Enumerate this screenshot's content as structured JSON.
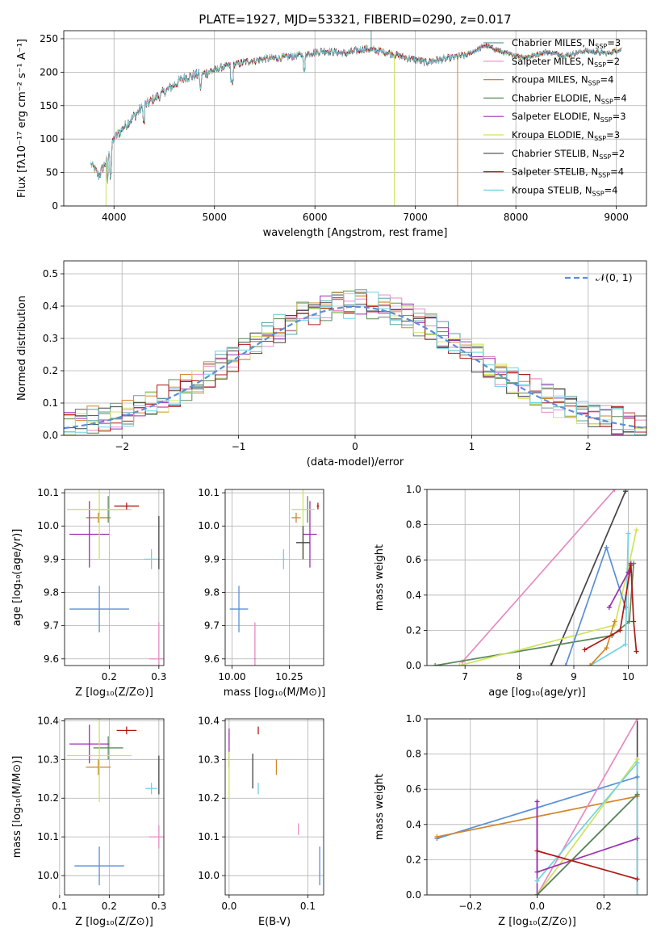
{
  "figure": {
    "title": "PLATE=1927, MJD=53321, FIBERID=0290, z=0.017"
  },
  "chart_data": [
    {
      "id": "spectrum",
      "type": "line",
      "title": "PLATE=1927, MJD=53321, FIBERID=0290, z=0.017",
      "xlabel": "wavelength [Angstrom, rest frame]",
      "ylabel": "Flux [fλ10⁻¹⁷ erg cm⁻² s⁻¹ A⁻¹]",
      "xlim": [
        3500,
        9300
      ],
      "ylim": [
        0,
        262
      ],
      "xticks": [
        4000,
        5000,
        6000,
        7000,
        8000,
        9000
      ],
      "yticks": [
        0,
        50,
        100,
        150,
        200,
        250
      ],
      "legend_position": "top-right",
      "continuum": {
        "x": [
          3770,
          3850,
          3950,
          4000,
          4100,
          4300,
          4500,
          4700,
          4900,
          5100,
          5300,
          5500,
          5700,
          5900,
          6100,
          6300,
          6500,
          6700,
          6900,
          7100,
          7300,
          7500,
          7700,
          7900,
          8100,
          8300,
          8500,
          8700,
          8900,
          9050
        ],
        "y": [
          63,
          45,
          75,
          100,
          118,
          150,
          170,
          192,
          198,
          208,
          215,
          220,
          222,
          227,
          232,
          228,
          235,
          230,
          222,
          215,
          220,
          225,
          240,
          228,
          222,
          230,
          225,
          232,
          228,
          234
        ]
      },
      "series": [
        {
          "name": "Chabrier MILES, N",
          "sub": "SSP",
          "suffix": "=3",
          "color": "#5f9ea0"
        },
        {
          "name": "Salpeter MILES, N",
          "sub": "SSP",
          "suffix": "=2",
          "color": "#e78ac3"
        },
        {
          "name": "Kroupa MILES, N",
          "sub": "SSP",
          "suffix": "=4",
          "color": "#d2862a"
        },
        {
          "name": "Chabrier ELODIE, N",
          "sub": "SSP",
          "suffix": "=4",
          "color": "#5b8a5b"
        },
        {
          "name": "Salpeter ELODIE, N",
          "sub": "SSP",
          "suffix": "=3",
          "color": "#9b30b0"
        },
        {
          "name": "Kroupa ELODIE, N",
          "sub": "SSP",
          "suffix": "=3",
          "color": "#cfe35b"
        },
        {
          "name": "Chabrier STELIB, N",
          "sub": "SSP",
          "suffix": "=2",
          "color": "#444444"
        },
        {
          "name": "Salpeter STELIB, N",
          "sub": "SSP",
          "suffix": "=4",
          "color": "#b01818"
        },
        {
          "name": "Kroupa STELIB, N",
          "sub": "SSP",
          "suffix": "=4",
          "color": "#6fd3e3"
        }
      ],
      "dropouts": [
        {
          "x": 3920,
          "color": "#cfe35b"
        },
        {
          "x": 6790,
          "color": "#cfe35b"
        },
        {
          "x": 7420,
          "color": "#d2862a"
        },
        {
          "x": 6560,
          "color": "#5f9ea0",
          "up": true
        }
      ]
    },
    {
      "id": "residuals",
      "type": "line",
      "xlabel": "(data-model)/error",
      "ylabel": "Normed distribution",
      "xlim": [
        -2.5,
        2.5
      ],
      "ylim": [
        0,
        0.54
      ],
      "xticks": [
        -2,
        -1,
        0,
        1,
        2
      ],
      "yticks": [
        0.0,
        0.1,
        0.2,
        0.3,
        0.4,
        0.5
      ],
      "legend_position": "top-right",
      "reference": {
        "name": "𝒩(0, 1)",
        "color": "#5a8fd6"
      },
      "bin_width": 0.1,
      "bin_start": -2.5
    },
    {
      "id": "age_vs_Z",
      "type": "scatter",
      "xlabel": "Z [log₁₀(Z/Z⊙)]",
      "ylabel": "age  [log₁₀(age/yr)]",
      "xlim": [
        0.11,
        0.31
      ],
      "ylim": [
        9.58,
        10.11
      ],
      "xticks": [
        0.2,
        0.3
      ],
      "yticks": [
        9.6,
        9.7,
        9.8,
        9.9,
        10.0,
        10.1
      ],
      "points": [
        {
          "x": 0.18,
          "y": 9.75,
          "xerr": 0.06,
          "yerr": 0.07,
          "color": "#5a8fd6"
        },
        {
          "x": 0.178,
          "y": 10.025,
          "xerr": 0.025,
          "yerr": 0.015,
          "color": "#d2862a"
        },
        {
          "x": 0.198,
          "y": 10.05,
          "xerr": 0.04,
          "yerr": 0.04,
          "color": "#5b8a5b"
        },
        {
          "x": 0.16,
          "y": 9.975,
          "xerr": 0.04,
          "yerr": 0.1,
          "color": "#9b30b0"
        },
        {
          "x": 0.18,
          "y": 10.05,
          "xerr": 0.065,
          "yerr": 0.15,
          "color": "#cfe35b"
        },
        {
          "x": 0.235,
          "y": 10.06,
          "xerr": 0.025,
          "yerr": 0.01,
          "color": "#b01818"
        },
        {
          "x": 0.285,
          "y": 9.9,
          "xerr": 0.015,
          "yerr": 0.03,
          "color": "#6fd3e3"
        },
        {
          "x": 0.3,
          "y": 9.95,
          "xerr": 0.0,
          "yerr": 0.08,
          "color": "#444444"
        },
        {
          "x": 0.3,
          "y": 9.6,
          "xerr": 0.02,
          "yerr": 0.11,
          "color": "#e78ac3"
        }
      ]
    },
    {
      "id": "age_vs_mass",
      "type": "scatter",
      "xlabel": "mass [log₁₀(M/M⊙)]",
      "ylabel": "",
      "xlim": [
        9.97,
        10.4
      ],
      "ylim": [
        9.58,
        10.11
      ],
      "xticks": [
        10.0,
        10.25
      ],
      "yticks": [
        9.6,
        9.7,
        9.8,
        9.9,
        10.0,
        10.1
      ],
      "points": [
        {
          "x": 10.03,
          "y": 9.75,
          "xerr": 0.04,
          "yerr": 0.07,
          "color": "#5a8fd6"
        },
        {
          "x": 10.28,
          "y": 10.025,
          "xerr": 0.02,
          "yerr": 0.015,
          "color": "#d2862a"
        },
        {
          "x": 10.33,
          "y": 10.05,
          "xerr": 0.02,
          "yerr": 0.04,
          "color": "#5b8a5b"
        },
        {
          "x": 10.34,
          "y": 9.975,
          "xerr": 0.03,
          "yerr": 0.1,
          "color": "#9b30b0"
        },
        {
          "x": 10.31,
          "y": 10.05,
          "xerr": 0.05,
          "yerr": 0.15,
          "color": "#cfe35b"
        },
        {
          "x": 10.375,
          "y": 10.06,
          "xerr": 0.005,
          "yerr": 0.01,
          "color": "#b01818"
        },
        {
          "x": 10.225,
          "y": 9.9,
          "xerr": 0.005,
          "yerr": 0.03,
          "color": "#6fd3e3"
        },
        {
          "x": 10.31,
          "y": 9.95,
          "xerr": 0.03,
          "yerr": 0.05,
          "color": "#444444"
        },
        {
          "x": 10.1,
          "y": 9.6,
          "xerr": 0.005,
          "yerr": 0.11,
          "color": "#e78ac3"
        }
      ]
    },
    {
      "id": "massweight_vs_age",
      "type": "line",
      "xlabel": "age  [log₁₀(age/yr)]",
      "ylabel": "mass weight",
      "xlim": [
        6.3,
        10.35
      ],
      "ylim": [
        0,
        1.0
      ],
      "xticks": [
        7,
        8,
        9,
        10
      ],
      "yticks": [
        0.0,
        0.2,
        0.4,
        0.6,
        0.8,
        1.0
      ],
      "series": [
        {
          "color": "#e78ac3",
          "x": [
            6.95,
            9.75
          ],
          "y": [
            0.02,
            1.0
          ]
        },
        {
          "color": "#444444",
          "x": [
            8.58,
            9.95
          ],
          "y": [
            0.0,
            0.99
          ]
        },
        {
          "color": "#5b8a5b",
          "x": [
            6.45,
            9.7,
            10.02,
            10.1
          ],
          "y": [
            0.0,
            0.17,
            0.25,
            0.58
          ]
        },
        {
          "color": "#cfe35b",
          "x": [
            6.9,
            9.75,
            10.0,
            10.15
          ],
          "y": [
            0.0,
            0.23,
            0.55,
            0.77
          ]
        },
        {
          "color": "#5a8fd6",
          "x": [
            8.85,
            9.6,
            9.95
          ],
          "y": [
            0.0,
            0.67,
            0.33
          ]
        },
        {
          "color": "#6fd3e3",
          "x": [
            9.3,
            9.95,
            10.0
          ],
          "y": [
            0.0,
            0.12,
            0.75
          ]
        },
        {
          "color": "#d2862a",
          "x": [
            9.3,
            9.6,
            9.75
          ],
          "y": [
            0.0,
            0.1,
            0.25
          ]
        },
        {
          "color": "#9b30b0",
          "x": [
            9.65,
            10.0,
            10.05
          ],
          "y": [
            0.33,
            0.53,
            0.58
          ]
        },
        {
          "color": "#b01818",
          "x": [
            9.2,
            9.85,
            10.05,
            10.1,
            10.15
          ],
          "y": [
            0.09,
            0.2,
            0.57,
            0.25,
            0.08
          ]
        }
      ]
    },
    {
      "id": "mass_vs_Z",
      "type": "scatter",
      "xlabel": "Z [log₁₀(Z/Z⊙)]",
      "ylabel": "mass [log₁₀(M/M⊙)]",
      "xlim": [
        0.11,
        0.31
      ],
      "ylim": [
        9.95,
        10.405
      ],
      "xticks": [
        0.1,
        0.2,
        0.3
      ],
      "yticks": [
        10.0,
        10.1,
        10.2,
        10.3,
        10.4
      ],
      "points": [
        {
          "x": 0.18,
          "y": 10.025,
          "xerr": 0.05,
          "yerr": 0.05,
          "color": "#5a8fd6"
        },
        {
          "x": 0.178,
          "y": 10.28,
          "xerr": 0.025,
          "yerr": 0.02,
          "color": "#d2862a"
        },
        {
          "x": 0.198,
          "y": 10.33,
          "xerr": 0.03,
          "yerr": 0.03,
          "color": "#5b8a5b"
        },
        {
          "x": 0.16,
          "y": 10.34,
          "xerr": 0.04,
          "yerr": 0.05,
          "color": "#9b30b0"
        },
        {
          "x": 0.18,
          "y": 10.31,
          "xerr": 0.065,
          "yerr": 0.12,
          "color": "#cfe35b"
        },
        {
          "x": 0.235,
          "y": 10.375,
          "xerr": 0.02,
          "yerr": 0.01,
          "color": "#b01818"
        },
        {
          "x": 0.285,
          "y": 10.225,
          "xerr": 0.012,
          "yerr": 0.015,
          "color": "#6fd3e3"
        },
        {
          "x": 0.3,
          "y": 10.26,
          "xerr": 0.0,
          "yerr": 0.05,
          "color": "#444444"
        },
        {
          "x": 0.3,
          "y": 10.1,
          "xerr": 0.02,
          "yerr": 0.03,
          "color": "#e78ac3"
        }
      ]
    },
    {
      "id": "mass_vs_ebv",
      "type": "scatter",
      "xlabel": "E(B-V)",
      "ylabel": "",
      "xlim": [
        -0.005,
        0.12
      ],
      "ylim": [
        9.95,
        10.405
      ],
      "xticks": [
        0.0,
        0.1
      ],
      "yticks": [
        10.0,
        10.1,
        10.2,
        10.3,
        10.4
      ],
      "points": [
        {
          "x": 0.0,
          "y": 10.33,
          "xerr": 0,
          "yerr": 0.05,
          "color": "#9b30b0"
        },
        {
          "x": 0.0,
          "y": 10.26,
          "xerr": 0,
          "yerr": 0.06,
          "color": "#cfe35b"
        },
        {
          "x": 0.03,
          "y": 10.27,
          "xerr": 0,
          "yerr": 0.045,
          "color": "#444444"
        },
        {
          "x": 0.037,
          "y": 10.375,
          "xerr": 0,
          "yerr": 0.01,
          "color": "#b01818"
        },
        {
          "x": 0.037,
          "y": 10.225,
          "xerr": 0,
          "yerr": 0.015,
          "color": "#6fd3e3"
        },
        {
          "x": 0.06,
          "y": 10.28,
          "xerr": 0,
          "yerr": 0.02,
          "color": "#d2862a"
        },
        {
          "x": 0.088,
          "y": 10.12,
          "xerr": 0,
          "yerr": 0.015,
          "color": "#e78ac3"
        },
        {
          "x": 0.115,
          "y": 10.025,
          "xerr": 0,
          "yerr": 0.05,
          "color": "#5a8fd6"
        }
      ]
    },
    {
      "id": "massweight_vs_Z",
      "type": "line",
      "xlabel": "Z [log₁₀(Z/Z⊙)]",
      "ylabel": "mass weight",
      "xlim": [
        -0.33,
        0.33
      ],
      "ylim": [
        0,
        1.0
      ],
      "xticks": [
        -0.2,
        0.0,
        0.2
      ],
      "yticks": [
        0.0,
        0.2,
        0.4,
        0.6,
        0.8,
        1.0
      ],
      "series": [
        {
          "color": "#5a8fd6",
          "x": [
            -0.3,
            0.3
          ],
          "y": [
            0.32,
            0.67
          ]
        },
        {
          "color": "#d2862a",
          "x": [
            -0.3,
            0.3
          ],
          "y": [
            0.33,
            0.56
          ]
        },
        {
          "color": "#e78ac3",
          "x": [
            0.0,
            0.3
          ],
          "y": [
            0.0,
            1.0
          ]
        },
        {
          "color": "#cfe35b",
          "x": [
            0.0,
            0.3
          ],
          "y": [
            0.0,
            0.77
          ]
        },
        {
          "color": "#6fd3e3",
          "x": [
            0.0,
            0.3
          ],
          "y": [
            0.08,
            0.75
          ]
        },
        {
          "color": "#444444",
          "x": [
            0.0,
            0.3
          ],
          "y": [
            0.0,
            0.57
          ]
        },
        {
          "color": "#5b8a5b",
          "x": [
            0.0,
            0.3
          ],
          "y": [
            0.0,
            0.57
          ]
        },
        {
          "color": "#9b30b0",
          "x": [
            0.0,
            0.0,
            0.3
          ],
          "y": [
            0.53,
            0.13,
            0.32
          ]
        },
        {
          "color": "#b01818",
          "x": [
            0.0,
            0.3
          ],
          "y": [
            0.25,
            0.09
          ]
        }
      ],
      "verticals": [
        {
          "x": 0.0,
          "y0": 0.0,
          "y1": 0.54,
          "color": "#9b30b0"
        },
        {
          "x": 0.3,
          "y0": 0.0,
          "y1": 1.0,
          "color": "#444444"
        },
        {
          "x": 0.3,
          "y0": 0.0,
          "y1": 0.77,
          "color": "#6fd3e3"
        }
      ]
    }
  ]
}
